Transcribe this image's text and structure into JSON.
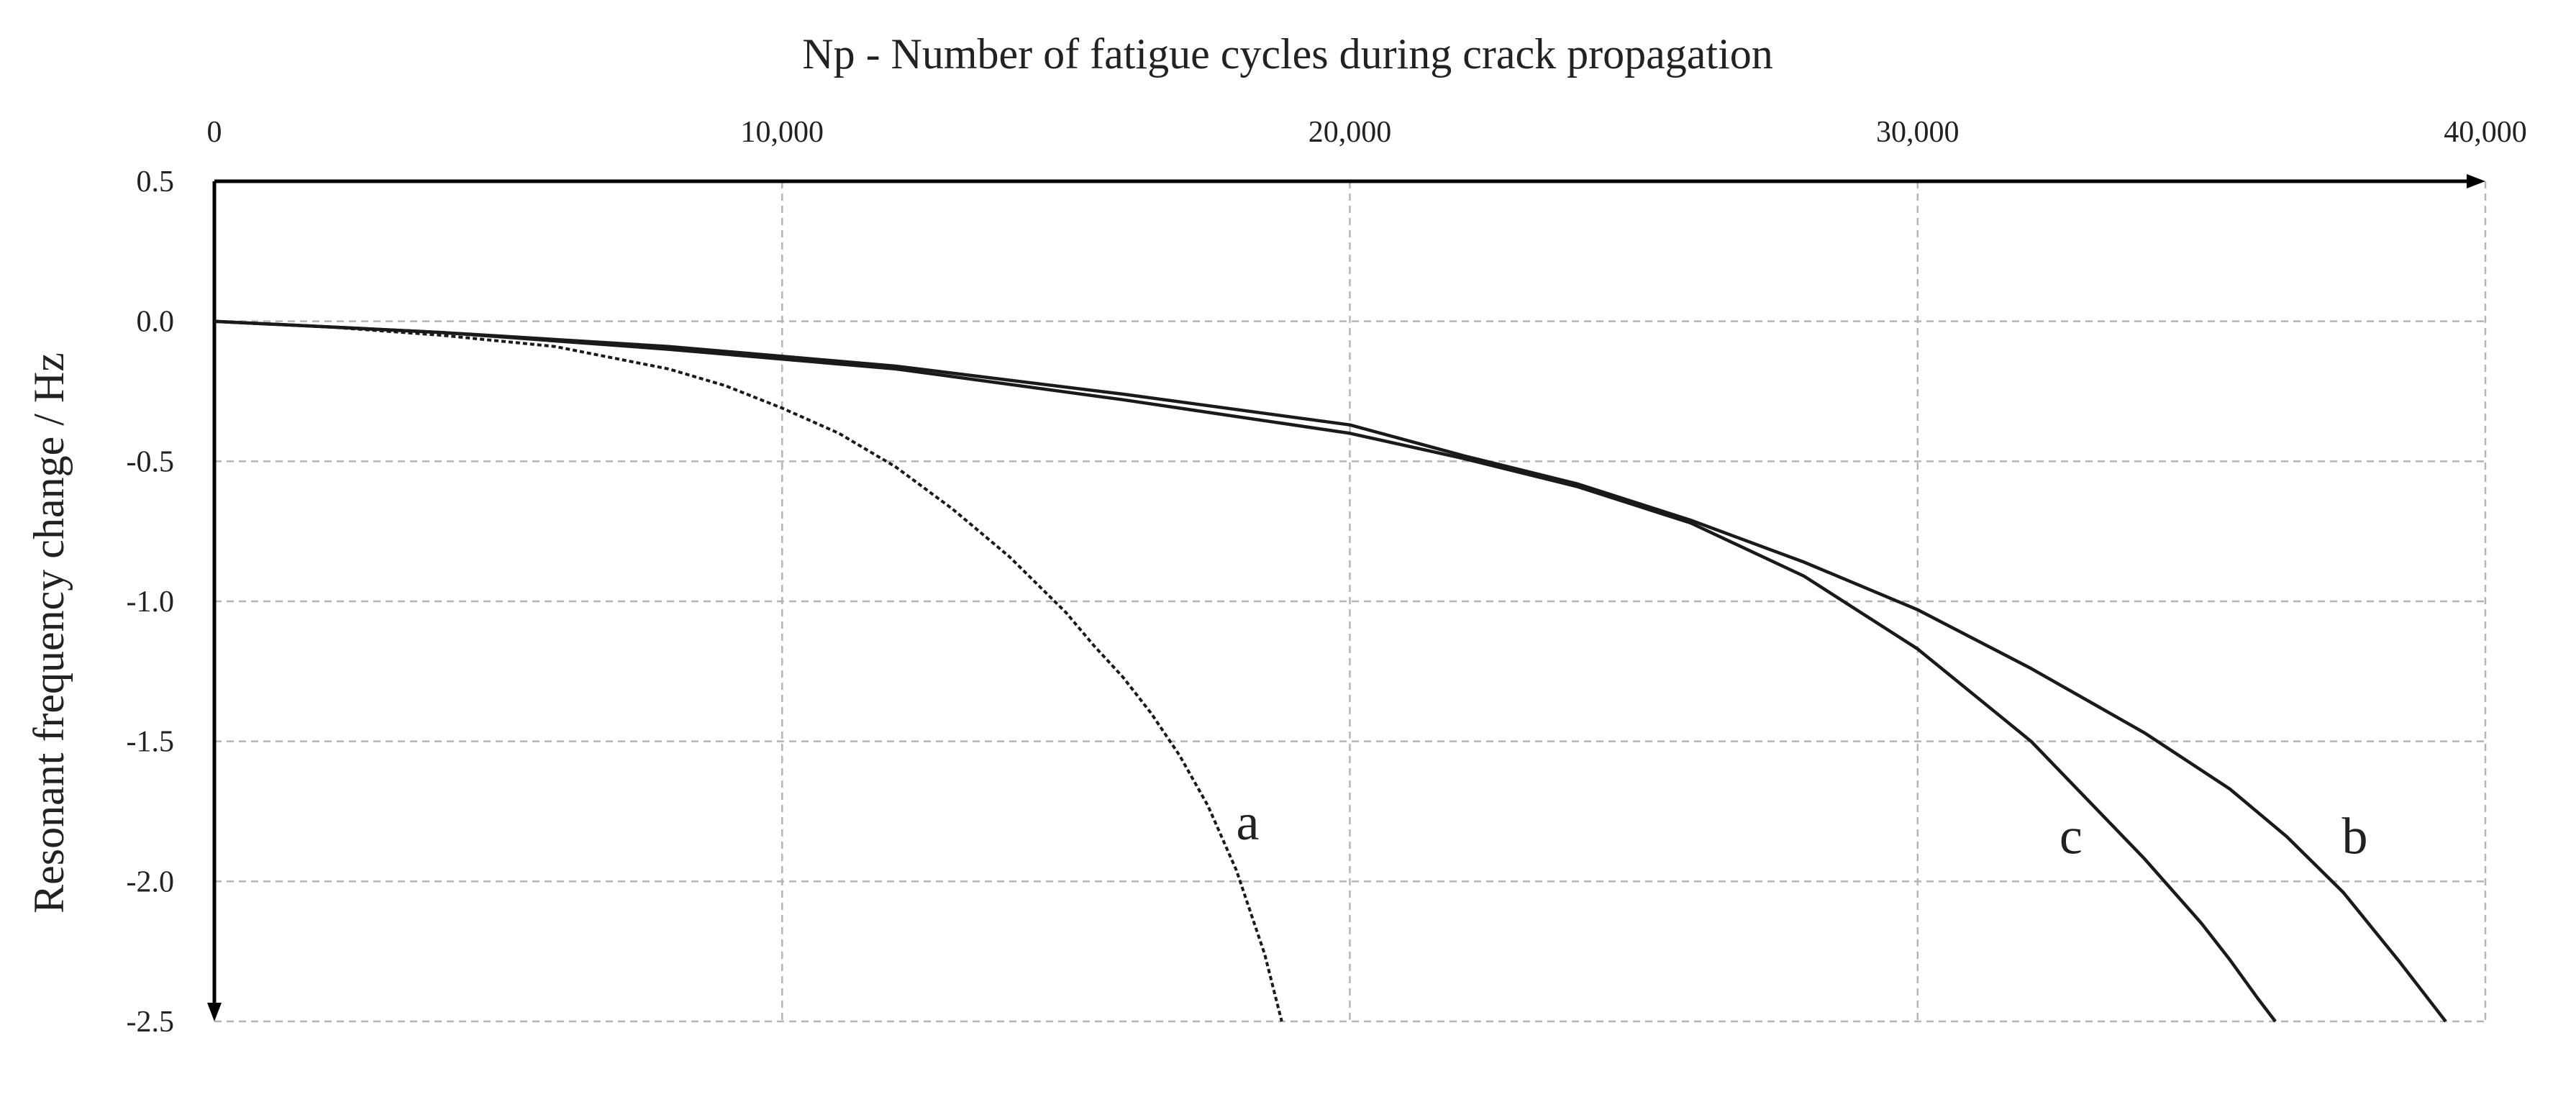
{
  "chart_data": {
    "type": "line",
    "title": "",
    "xlabel": "Np - Number of fatigue cycles during crack propagation",
    "ylabel": "Resonant frequency change / Hz",
    "xlim": [
      0,
      40000
    ],
    "ylim": [
      -2.5,
      0.5
    ],
    "x_axis_position": "top",
    "grid": true,
    "grid_style": "dashed",
    "legend": "none",
    "x_ticks": [
      "0",
      "10,000",
      "20,000",
      "30,000",
      "40,000"
    ],
    "x_tick_values": [
      0,
      10000,
      20000,
      30000,
      40000
    ],
    "y_ticks": [
      "0.5",
      "0.0",
      "-0.5",
      "-1.0",
      "-1.5",
      "-2.0",
      "-2.5"
    ],
    "y_tick_values": [
      0.5,
      0.0,
      -0.5,
      -1.0,
      -1.5,
      -2.0,
      -2.5
    ],
    "series": [
      {
        "name": "a",
        "line_style": "dotted",
        "x": [
          0,
          2000,
          4000,
          6000,
          8000,
          9000,
          10000,
          11000,
          12000,
          13000,
          14000,
          15000,
          15500,
          16000,
          16500,
          17000,
          17500,
          18000,
          18500,
          18800
        ],
        "y": [
          0.0,
          -0.02,
          -0.05,
          -0.09,
          -0.17,
          -0.23,
          -0.31,
          -0.4,
          -0.52,
          -0.67,
          -0.84,
          -1.04,
          -1.16,
          -1.27,
          -1.4,
          -1.55,
          -1.73,
          -1.96,
          -2.26,
          -2.5
        ]
      },
      {
        "name": "b",
        "line_style": "solid",
        "x": [
          0,
          4000,
          8000,
          12000,
          16000,
          20000,
          22000,
          24000,
          26000,
          28000,
          30000,
          32000,
          34000,
          35500,
          36500,
          37500,
          38500,
          39300
        ],
        "y": [
          0.0,
          -0.04,
          -0.09,
          -0.16,
          -0.26,
          -0.37,
          -0.48,
          -0.58,
          -0.71,
          -0.86,
          -1.03,
          -1.24,
          -1.47,
          -1.67,
          -1.84,
          -2.04,
          -2.29,
          -2.5
        ]
      },
      {
        "name": "c",
        "line_style": "solid",
        "x": [
          0,
          4000,
          8000,
          12000,
          16000,
          20000,
          22000,
          24000,
          26000,
          28000,
          30000,
          32000,
          33000,
          34000,
          35000,
          35500,
          36000,
          36300
        ],
        "y": [
          0.0,
          -0.04,
          -0.1,
          -0.17,
          -0.28,
          -0.4,
          -0.49,
          -0.59,
          -0.72,
          -0.91,
          -1.17,
          -1.5,
          -1.71,
          -1.92,
          -2.15,
          -2.28,
          -2.42,
          -2.5
        ]
      }
    ],
    "curve_labels": [
      {
        "text": "a",
        "x": 18200,
        "y": -1.85
      },
      {
        "text": "b",
        "x": 37700,
        "y": -1.9
      },
      {
        "text": "c",
        "x": 32700,
        "y": -1.9
      }
    ]
  }
}
